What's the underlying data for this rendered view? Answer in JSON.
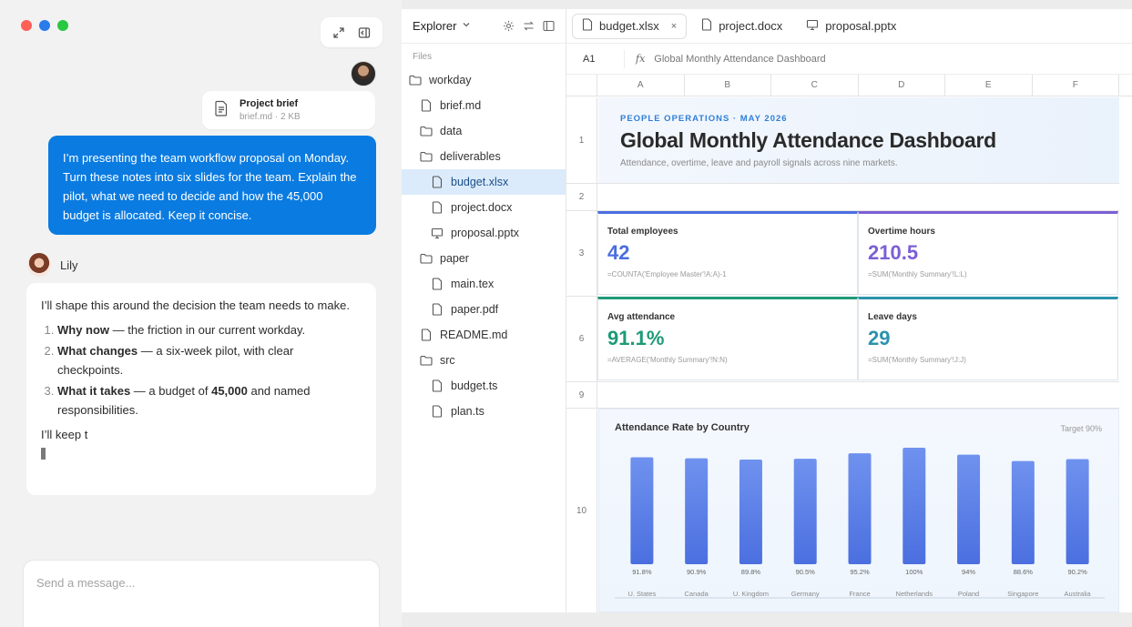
{
  "chat": {
    "attachment": {
      "title": "Project brief",
      "meta": "brief.md · 2 KB"
    },
    "user_message": "I’m presenting the team workflow proposal on Monday. Turn these notes into six slides for the team. Explain the pilot, what we need to decide and how the 45,000 budget is allocated. Keep it concise.",
    "assistant_name": "Lily",
    "assistant_intro": "I’ll shape this around the decision the team needs to make.",
    "assistant_points": [
      {
        "bold": "Why now",
        "rest": " — the friction in our current workday."
      },
      {
        "bold": "What changes",
        "rest": " — a six-week pilot, with clear checkpoints."
      },
      {
        "bold": "What it takes",
        "rest_before": " — a budget of ",
        "bold2": "45,000",
        "rest_after": " and named responsibilities."
      }
    ],
    "assistant_partial": "I’ll keep t",
    "composer_placeholder": "Send a message..."
  },
  "explorer": {
    "title": "Explorer",
    "section": "Files",
    "tree": [
      {
        "label": "workday",
        "type": "folder",
        "depth": 0
      },
      {
        "label": "brief.md",
        "type": "file",
        "depth": 1
      },
      {
        "label": "data",
        "type": "folder",
        "depth": 1
      },
      {
        "label": "deliverables",
        "type": "folder",
        "depth": 1
      },
      {
        "label": "budget.xlsx",
        "type": "file",
        "depth": 2,
        "selected": true
      },
      {
        "label": "project.docx",
        "type": "file",
        "depth": 2
      },
      {
        "label": "proposal.pptx",
        "type": "slides",
        "depth": 2
      },
      {
        "label": "paper",
        "type": "folder",
        "depth": 1
      },
      {
        "label": "main.tex",
        "type": "file",
        "depth": 2
      },
      {
        "label": "paper.pdf",
        "type": "file",
        "depth": 2
      },
      {
        "label": "README.md",
        "type": "file",
        "depth": 1
      },
      {
        "label": "src",
        "type": "folder",
        "depth": 1
      },
      {
        "label": "budget.ts",
        "type": "file",
        "depth": 2
      },
      {
        "label": "plan.ts",
        "type": "file",
        "depth": 2
      }
    ]
  },
  "tabs": [
    {
      "label": "budget.xlsx",
      "active": true,
      "close": "×"
    },
    {
      "label": "project.docx",
      "active": false
    },
    {
      "label": "proposal.pptx",
      "active": false
    }
  ],
  "formula_bar": {
    "cell": "A1",
    "fx": "fx",
    "content": "Global Monthly Attendance Dashboard"
  },
  "columns": [
    "A",
    "B",
    "C",
    "D",
    "E",
    "F"
  ],
  "rows": [
    "1",
    "2",
    "3",
    "6",
    "9",
    "10"
  ],
  "banner": {
    "eyebrow": "PEOPLE OPERATIONS · MAY 2026",
    "title": "Global Monthly Attendance Dashboard",
    "subtitle": "Attendance, overtime, leave and payroll signals across nine markets."
  },
  "kpis": [
    {
      "label": "Total employees",
      "value": "42",
      "formula": "=COUNTA('Employee Master'!A:A)-1",
      "color": "#4a6ee0"
    },
    {
      "label": "Overtime hours",
      "value": "210.5",
      "formula": "=SUM('Monthly Summary'!L:L)",
      "color": "#7b5fd6"
    },
    {
      "label": "Avg attendance",
      "value": "91.1%",
      "formula": "=AVERAGE('Monthly Summary'!N:N)",
      "color": "#1f9a78"
    },
    {
      "label": "Leave days",
      "value": "29",
      "formula": "=SUM('Monthly Summary'!J:J)",
      "color": "#2a93ad"
    }
  ],
  "chart_data": {
    "type": "bar",
    "title": "Attendance Rate by Country",
    "annotation": "Target 90%",
    "categories": [
      "U. States",
      "Canada",
      "U. Kingdom",
      "Germany",
      "France",
      "Netherlands",
      "Poland",
      "Singapore",
      "Australia"
    ],
    "values": [
      91.8,
      90.9,
      89.8,
      90.5,
      95.2,
      100,
      94,
      88.6,
      90.2
    ],
    "value_labels": [
      "91.8%",
      "90.9%",
      "89.8%",
      "90.5%",
      "95.2%",
      "100%",
      "94%",
      "88.6%",
      "90.2%"
    ],
    "ylim": [
      0,
      100
    ],
    "bar_color": "#5b82ea"
  }
}
